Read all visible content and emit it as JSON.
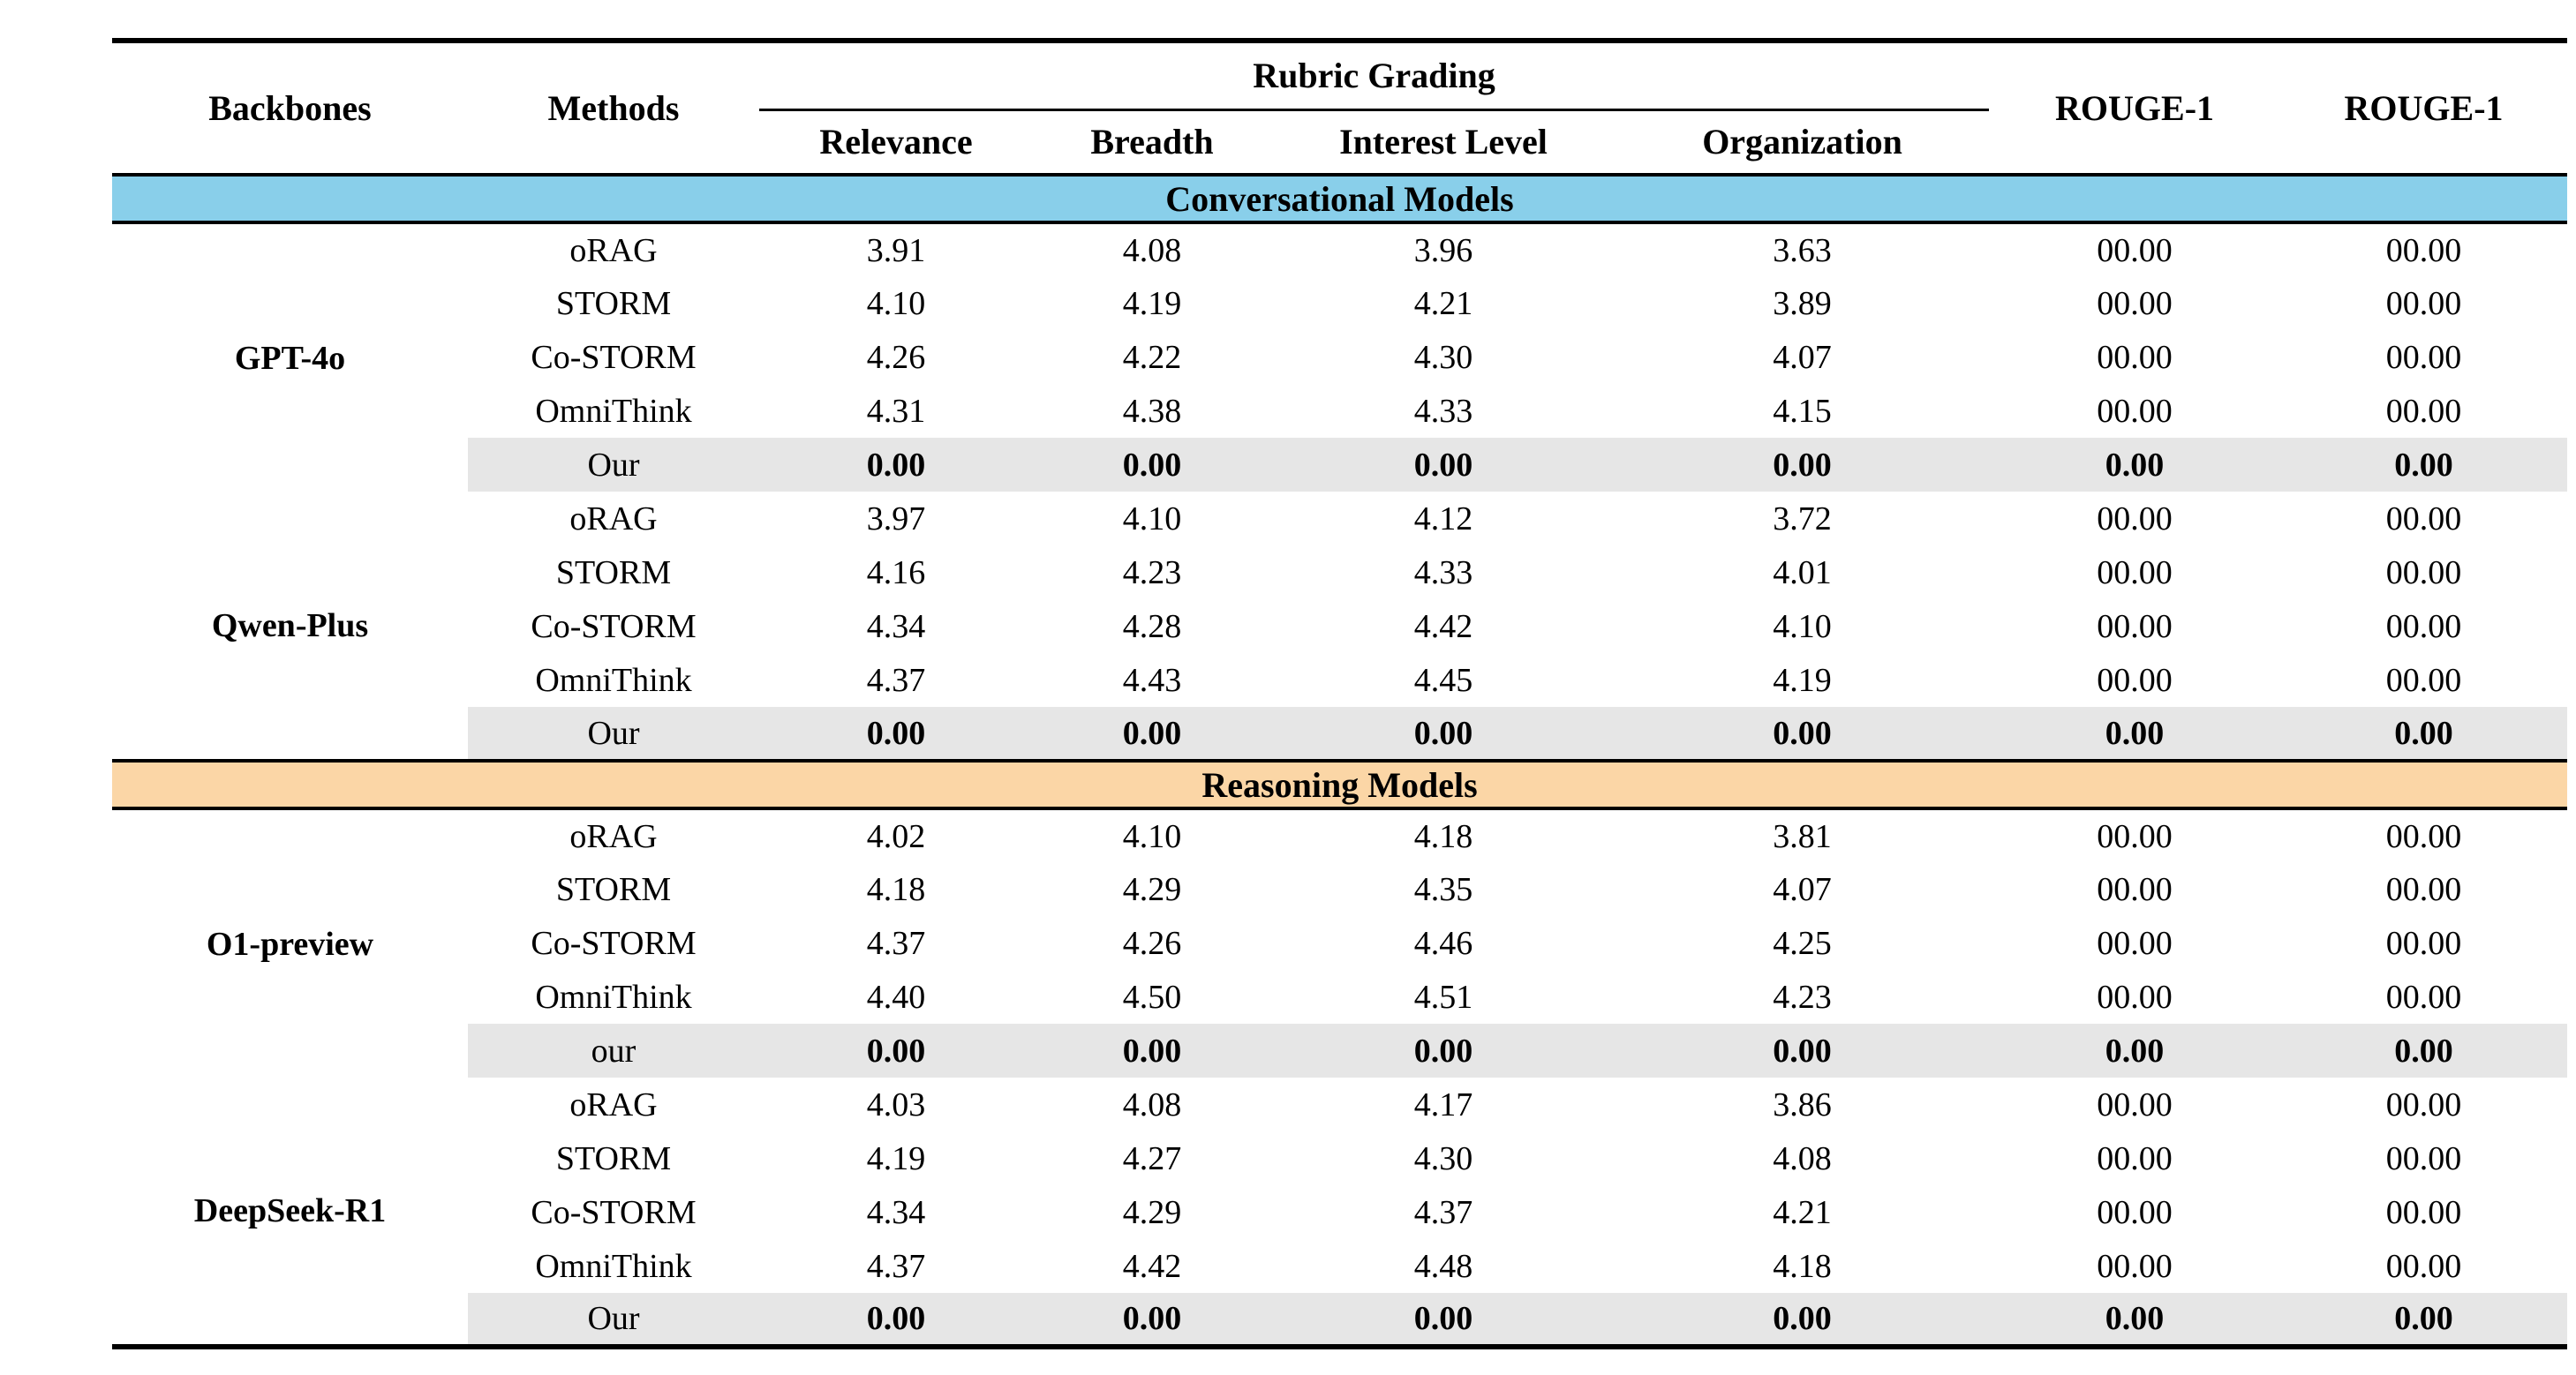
{
  "colors": {
    "conversational_band": "#89CFEA",
    "reasoning_band": "#FBD6A6",
    "highlight_row": "#E6E6E6"
  },
  "header": {
    "backbones": "Backbones",
    "methods": "Methods",
    "rubric_grading": "Rubric Grading",
    "sub_columns": [
      "Relevance",
      "Breadth",
      "Interest Level",
      "Organization"
    ],
    "rouge_columns": [
      "ROUGE-1",
      "ROUGE-1"
    ]
  },
  "sections": [
    {
      "label": "Conversational Models",
      "band": "conversational_band",
      "groups": [
        {
          "backbone": "GPT-4o",
          "rows": [
            {
              "method": "oRAG",
              "values": [
                "3.91",
                "4.08",
                "3.96",
                "3.63",
                "00.00",
                "00.00"
              ],
              "highlight": false
            },
            {
              "method": "STORM",
              "values": [
                "4.10",
                "4.19",
                "4.21",
                "3.89",
                "00.00",
                "00.00"
              ],
              "highlight": false
            },
            {
              "method": "Co-STORM",
              "values": [
                "4.26",
                "4.22",
                "4.30",
                "4.07",
                "00.00",
                "00.00"
              ],
              "highlight": false
            },
            {
              "method": "OmniThink",
              "values": [
                "4.31",
                "4.38",
                "4.33",
                "4.15",
                "00.00",
                "00.00"
              ],
              "highlight": false
            },
            {
              "method": "Our",
              "values": [
                "0.00",
                "0.00",
                "0.00",
                "0.00",
                "0.00",
                "0.00"
              ],
              "highlight": true
            }
          ]
        },
        {
          "backbone": "Qwen-Plus",
          "rows": [
            {
              "method": "oRAG",
              "values": [
                "3.97",
                "4.10",
                "4.12",
                "3.72",
                "00.00",
                "00.00"
              ],
              "highlight": false
            },
            {
              "method": "STORM",
              "values": [
                "4.16",
                "4.23",
                "4.33",
                "4.01",
                "00.00",
                "00.00"
              ],
              "highlight": false
            },
            {
              "method": "Co-STORM",
              "values": [
                "4.34",
                "4.28",
                "4.42",
                "4.10",
                "00.00",
                "00.00"
              ],
              "highlight": false
            },
            {
              "method": "OmniThink",
              "values": [
                "4.37",
                "4.43",
                "4.45",
                "4.19",
                "00.00",
                "00.00"
              ],
              "highlight": false
            },
            {
              "method": "Our",
              "values": [
                "0.00",
                "0.00",
                "0.00",
                "0.00",
                "0.00",
                "0.00"
              ],
              "highlight": true
            }
          ]
        }
      ]
    },
    {
      "label": "Reasoning Models",
      "band": "reasoning_band",
      "groups": [
        {
          "backbone": "O1-preview",
          "rows": [
            {
              "method": "oRAG",
              "values": [
                "4.02",
                "4.10",
                "4.18",
                "3.81",
                "00.00",
                "00.00"
              ],
              "highlight": false
            },
            {
              "method": "STORM",
              "values": [
                "4.18",
                "4.29",
                "4.35",
                "4.07",
                "00.00",
                "00.00"
              ],
              "highlight": false
            },
            {
              "method": "Co-STORM",
              "values": [
                "4.37",
                "4.26",
                "4.46",
                "4.25",
                "00.00",
                "00.00"
              ],
              "highlight": false
            },
            {
              "method": "OmniThink",
              "values": [
                "4.40",
                "4.50",
                "4.51",
                "4.23",
                "00.00",
                "00.00"
              ],
              "highlight": false
            },
            {
              "method": "our",
              "values": [
                "0.00",
                "0.00",
                "0.00",
                "0.00",
                "0.00",
                "0.00"
              ],
              "highlight": true
            }
          ]
        },
        {
          "backbone": "DeepSeek-R1",
          "rows": [
            {
              "method": "oRAG",
              "values": [
                "4.03",
                "4.08",
                "4.17",
                "3.86",
                "00.00",
                "00.00"
              ],
              "highlight": false
            },
            {
              "method": "STORM",
              "values": [
                "4.19",
                "4.27",
                "4.30",
                "4.08",
                "00.00",
                "00.00"
              ],
              "highlight": false
            },
            {
              "method": "Co-STORM",
              "values": [
                "4.34",
                "4.29",
                "4.37",
                "4.21",
                "00.00",
                "00.00"
              ],
              "highlight": false
            },
            {
              "method": "OmniThink",
              "values": [
                "4.37",
                "4.42",
                "4.48",
                "4.18",
                "00.00",
                "00.00"
              ],
              "highlight": false
            },
            {
              "method": "Our",
              "values": [
                "0.00",
                "0.00",
                "0.00",
                "0.00",
                "0.00",
                "0.00"
              ],
              "highlight": true
            }
          ]
        }
      ]
    }
  ]
}
